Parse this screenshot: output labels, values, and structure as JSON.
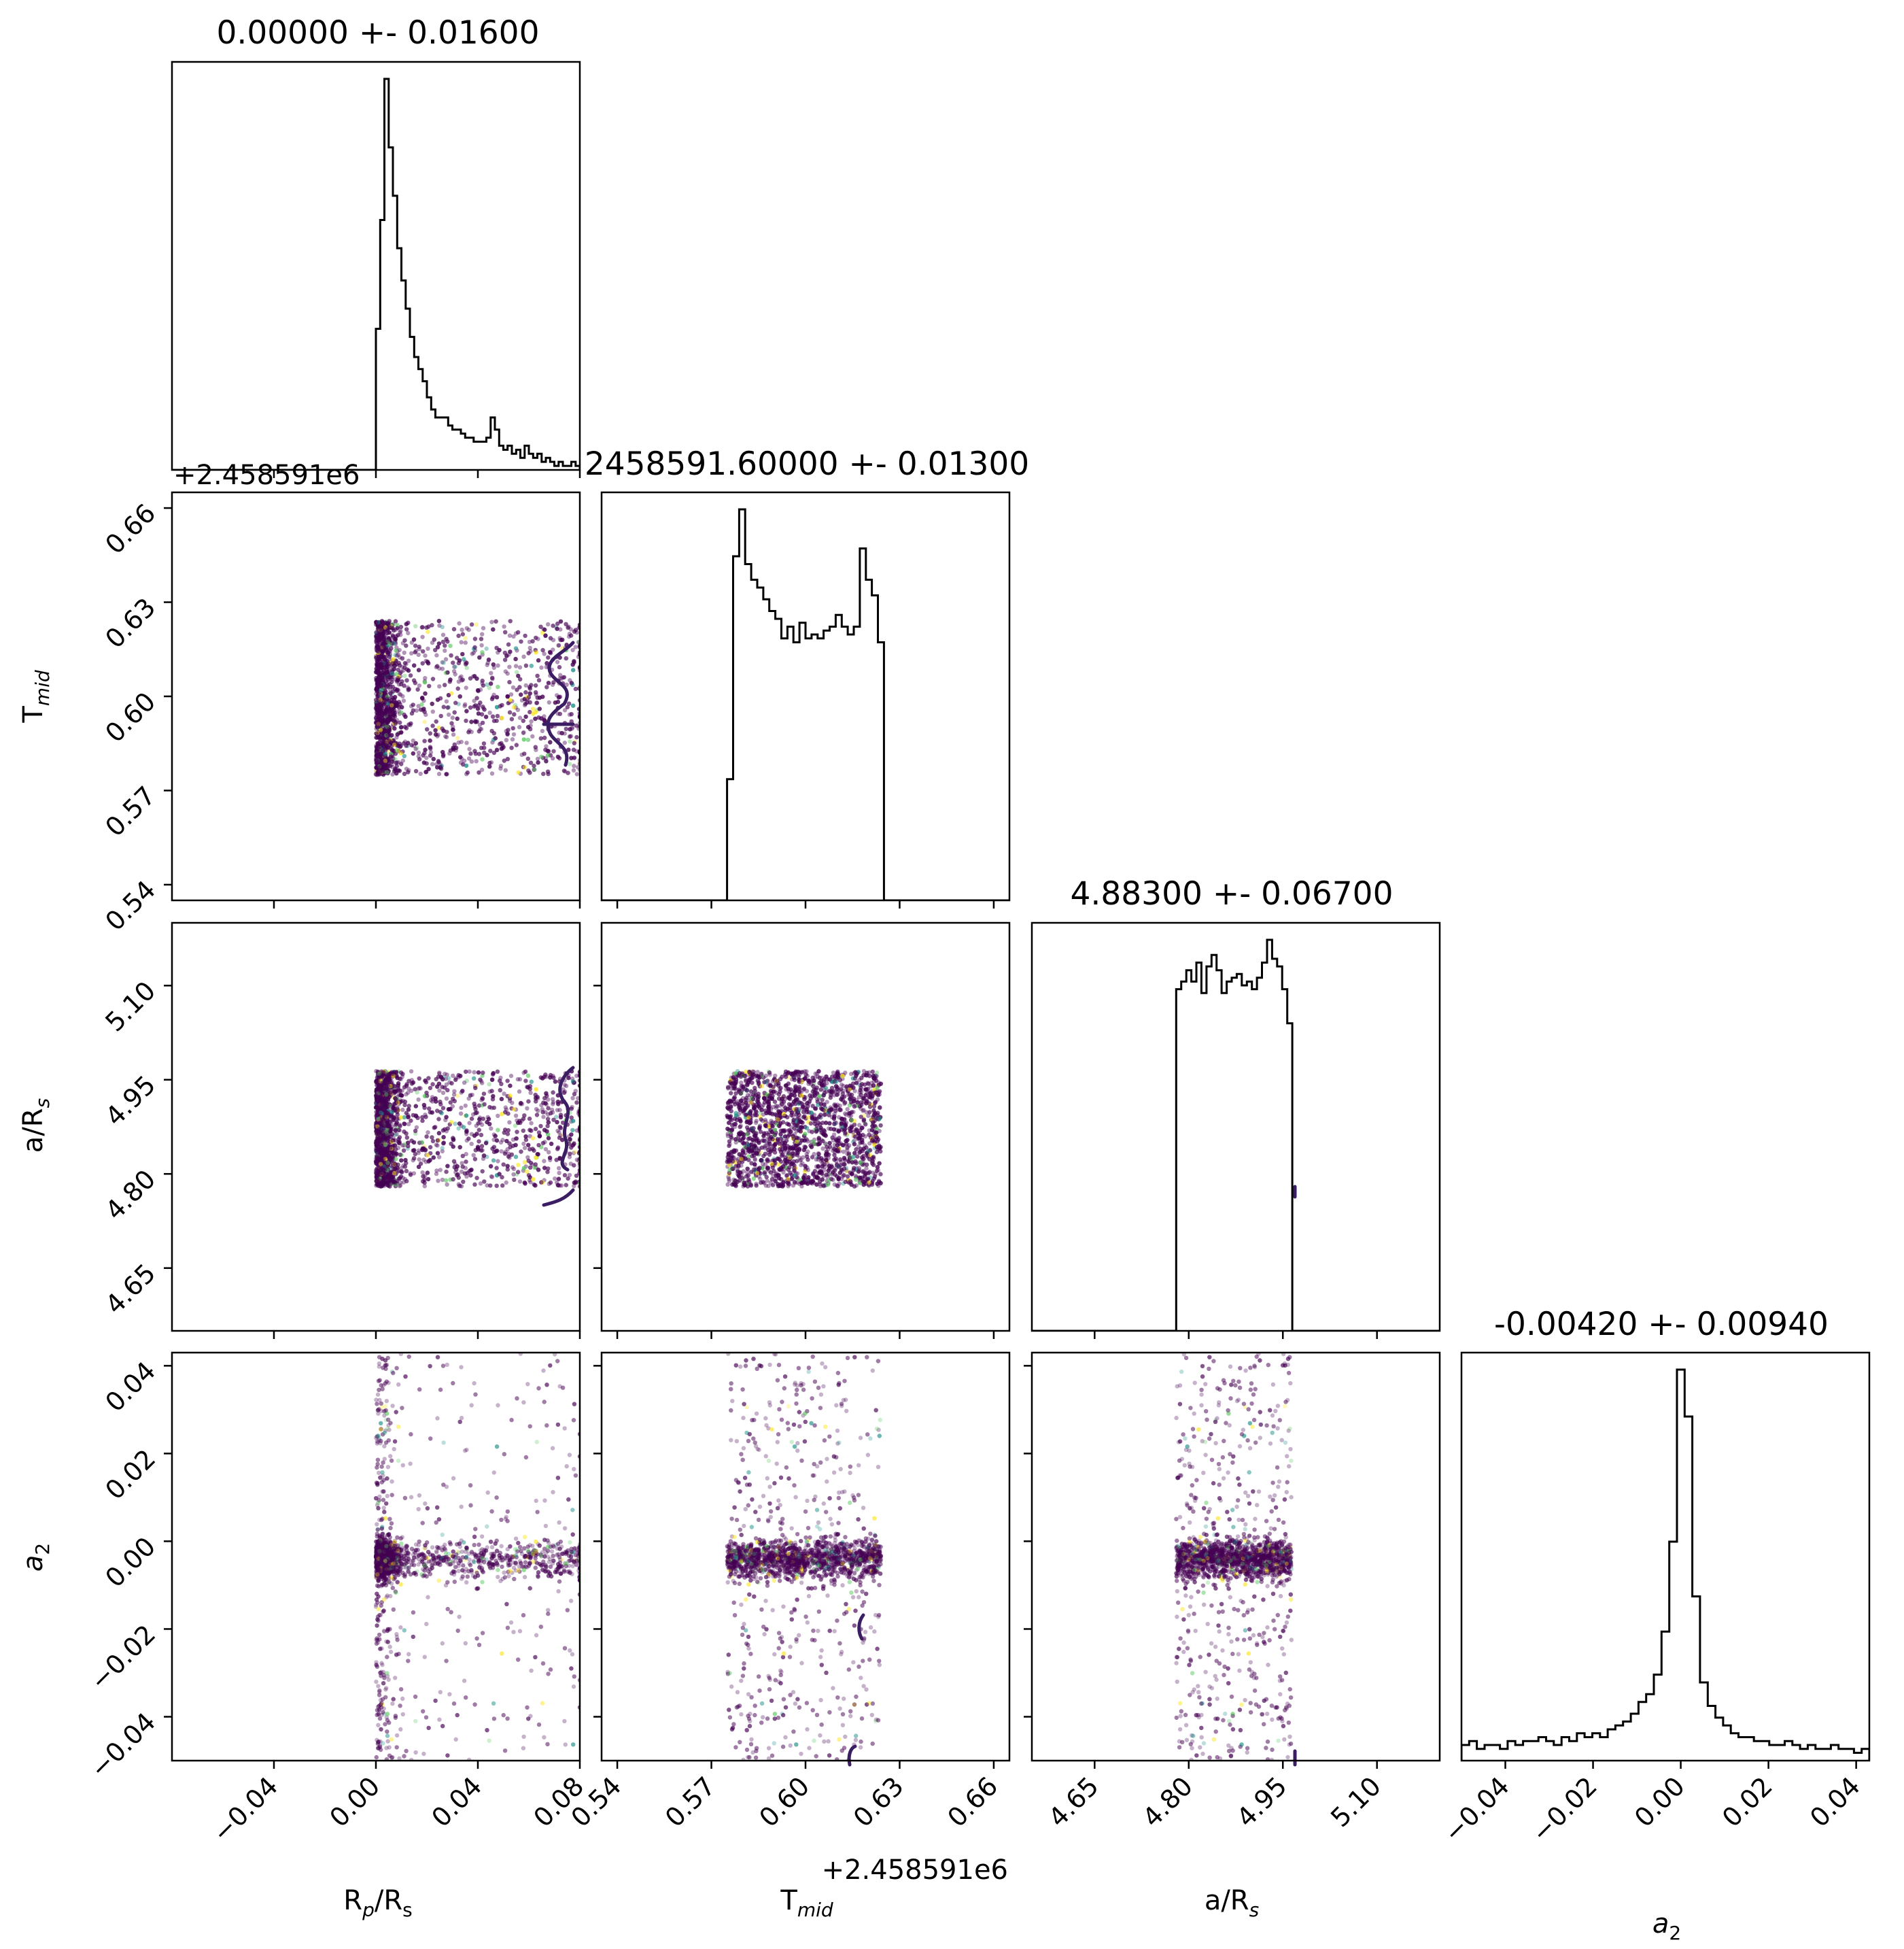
{
  "chart_data": {
    "type": "scatter",
    "subtype": "corner plot",
    "parameters": [
      {
        "key": "rp",
        "label": "R_p/R_s",
        "title": "0.00000 +- 0.01600",
        "range": [
          -0.08,
          0.08
        ],
        "ticks": [
          -0.04,
          0.0,
          0.04,
          0.08
        ],
        "tick_labels": [
          "−0.04",
          "0.00",
          "0.04",
          "0.08"
        ],
        "hist": [
          0.35,
          0.62,
          0.97,
          0.8,
          0.68,
          0.55,
          0.47,
          0.4,
          0.33,
          0.28,
          0.25,
          0.22,
          0.18,
          0.15,
          0.13,
          0.13,
          0.13,
          0.11,
          0.1,
          0.1,
          0.09,
          0.08,
          0.08,
          0.07,
          0.07,
          0.07,
          0.08,
          0.13,
          0.1,
          0.06,
          0.05,
          0.06,
          0.04,
          0.05,
          0.03,
          0.06,
          0.04,
          0.03,
          0.04,
          0.02,
          0.03,
          0.02,
          0.01,
          0.02,
          0.01,
          0.01,
          0.02,
          0.01
        ],
        "hist_range": [
          0.0,
          0.08
        ]
      },
      {
        "key": "tmid",
        "label": "T_mid",
        "title": "2458591.60000 +- 0.01300",
        "range": [
          0.535,
          0.665
        ],
        "ticks": [
          0.54,
          0.57,
          0.6,
          0.63,
          0.66
        ],
        "tick_labels": [
          "0.54",
          "0.57",
          "0.60",
          "0.63",
          "0.66"
        ],
        "offset_text": "+2.458591e6",
        "hist": [
          0.31,
          0.88,
          1.0,
          0.86,
          0.82,
          0.8,
          0.77,
          0.74,
          0.72,
          0.67,
          0.7,
          0.66,
          0.71,
          0.67,
          0.68,
          0.67,
          0.69,
          0.7,
          0.73,
          0.7,
          0.68,
          0.7,
          0.9,
          0.82,
          0.78,
          0.66
        ],
        "hist_range": [
          0.575,
          0.625
        ]
      },
      {
        "key": "ars",
        "label": "a/R_s",
        "title": "4.88300 +- 0.06700",
        "range": [
          4.55,
          5.2
        ],
        "ticks": [
          4.65,
          4.8,
          4.95,
          5.1
        ],
        "tick_labels": [
          "4.65",
          "4.80",
          "4.95",
          "5.10"
        ],
        "hist": [
          0.9,
          0.92,
          0.95,
          0.92,
          0.97,
          0.89,
          0.96,
          0.99,
          0.95,
          0.89,
          0.92,
          0.93,
          0.94,
          0.91,
          0.92,
          0.9,
          0.93,
          0.97,
          1.03,
          0.98,
          0.96,
          0.9,
          0.81
        ],
        "hist_range": [
          4.78,
          4.965
        ]
      },
      {
        "key": "a2",
        "label": "a_2",
        "title": "-0.00420 +- 0.00940",
        "range": [
          -0.05,
          0.043
        ],
        "ticks": [
          -0.04,
          -0.02,
          0.0,
          0.02,
          0.04
        ],
        "tick_labels": [
          "−0.04",
          "−0.02",
          "0.00",
          "0.02",
          "0.04"
        ],
        "hist": [
          0.04,
          0.05,
          0.03,
          0.04,
          0.04,
          0.03,
          0.05,
          0.04,
          0.05,
          0.05,
          0.06,
          0.05,
          0.04,
          0.06,
          0.05,
          0.07,
          0.06,
          0.07,
          0.06,
          0.08,
          0.09,
          0.1,
          0.12,
          0.15,
          0.17,
          0.22,
          0.33,
          0.56,
          1.0,
          0.88,
          0.42,
          0.2,
          0.14,
          0.11,
          0.09,
          0.07,
          0.06,
          0.06,
          0.05,
          0.05,
          0.04,
          0.04,
          0.05,
          0.04,
          0.03,
          0.04,
          0.03,
          0.03,
          0.04,
          0.03,
          0.03,
          0.02,
          0.03
        ],
        "hist_range": [
          -0.05,
          0.043
        ]
      }
    ],
    "colors": {
      "samples": "#440154",
      "accents": [
        "#21918c",
        "#fde725",
        "#5ec962"
      ],
      "contour": "#3b1d63",
      "hist": "#000000"
    }
  }
}
